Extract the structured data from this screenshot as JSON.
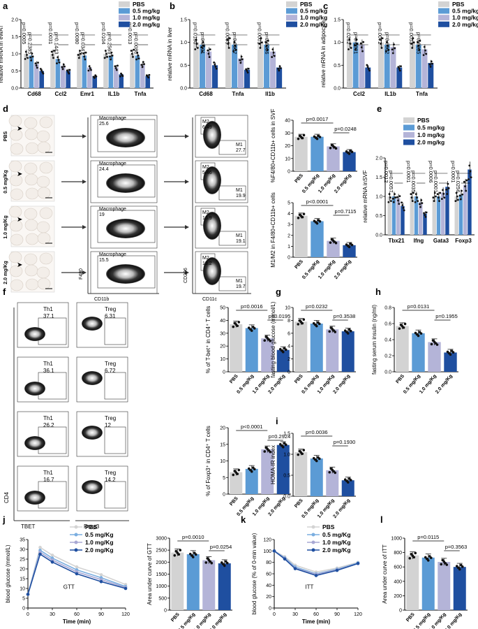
{
  "colors": {
    "pbs": "#d3d3d3",
    "d05": "#5b9bd5",
    "d10": "#b4b4d8",
    "d20": "#1f4fa0"
  },
  "panel_letters": {
    "a": "a",
    "b": "b",
    "c": "c",
    "d": "d",
    "e": "e",
    "f": "f",
    "g": "g",
    "h": "h",
    "i": "i",
    "j": "j",
    "k": "k",
    "l": "l"
  },
  "legend_kg": [
    "PBS",
    "0.5 mg/kg",
    "1.0 mg/kg",
    "2.0 mg/kg"
  ],
  "legend_Kg": [
    "PBS",
    "0.5 mg/Kg",
    "1.0 mg/Kg",
    "2.0 mg/Kg"
  ],
  "groups_Kg": [
    "PBS",
    "0.5 mg/Kg",
    "1.0 mg/Kg",
    "2.0 mg/Kg"
  ],
  "panel_d": {
    "rows": [
      "PBS",
      "0.5 mg/Kg",
      "1.0 mg/Kg",
      "2.0 mg/Kg"
    ],
    "mac_label": "Macrophage",
    "mac_values": [
      "25.6",
      "24.4",
      "19",
      "15.5"
    ],
    "m2_values": [
      "6.49",
      "5.46",
      "16.9",
      "19.2"
    ],
    "m1_values": [
      "27.7",
      "19.9",
      "19.1",
      "19.7"
    ],
    "m2_label": "M2",
    "m1_label": "M1",
    "x1": "CD11b",
    "y1": "F480",
    "x2": "CD11c",
    "y2": "CD206"
  },
  "panel_f": {
    "th1_label": "Th1",
    "treg_label": "Treg",
    "th1_values": [
      "37.1",
      "36.1",
      "26.2",
      "16.7"
    ],
    "treg_values": [
      "6.31",
      "6.72",
      "12",
      "14.2"
    ],
    "ylab": "CD4",
    "x1": "TBET",
    "x2": "Foxp3"
  },
  "chart_data": [
    {
      "id": "a",
      "type": "bar",
      "ylabel": "relative mRNA in eWAT",
      "categories": [
        "Cd68",
        "Ccl2",
        "Emr1",
        "IL1b",
        "Tnfa"
      ],
      "ylim": [
        0,
        2.0
      ],
      "yticks": [
        "0.0",
        "0.5",
        "1.0",
        "1.5",
        "2.0"
      ],
      "series": [
        {
          "name": "PBS",
          "values": [
            1.0,
            1.0,
            1.0,
            1.0,
            1.0
          ]
        },
        {
          "name": "0.5 mg/kg",
          "values": [
            0.95,
            0.85,
            0.95,
            0.95,
            0.95
          ]
        },
        {
          "name": "1.0 mg/kg",
          "values": [
            0.7,
            0.65,
            0.6,
            0.6,
            0.7
          ]
        },
        {
          "name": "2.0 mg/kg",
          "values": [
            0.5,
            0.5,
            0.35,
            0.4,
            0.35
          ]
        }
      ],
      "pvalues": [
        [
          "p=0.0005",
          "p=0.2385"
        ],
        [
          "p=0.0031",
          "p=0.1443"
        ],
        [
          "p=0.0080",
          "p=0.0341"
        ],
        [
          "p=0.0104",
          "p=0.2569"
        ],
        [
          "p=0.0013",
          "p=0.0080"
        ]
      ]
    },
    {
      "id": "b",
      "type": "bar",
      "ylabel": "relative mRNA in liver",
      "categories": [
        "Cd68",
        "Tnfa",
        "Il1b"
      ],
      "ylim": [
        0,
        1.5
      ],
      "yticks": [
        "0.0",
        "0.5",
        "1.0",
        "1.5"
      ],
      "series": [
        {
          "name": "PBS",
          "values": [
            1.0,
            1.0,
            1.0
          ]
        },
        {
          "name": "0.5 mg/kg",
          "values": [
            0.95,
            0.95,
            0.95
          ]
        },
        {
          "name": "1.0 mg/kg",
          "values": [
            0.8,
            0.65,
            0.8
          ]
        },
        {
          "name": "2.0 mg/kg",
          "values": [
            0.5,
            0.4,
            0.45
          ]
        }
      ],
      "pvalues": [
        [
          "p=0.0180",
          "p=0.0001"
        ],
        [
          "p=0.0005",
          "p=0.0007"
        ],
        [
          "p=0.0001",
          "p=0.0006"
        ]
      ]
    },
    {
      "id": "c",
      "type": "bar",
      "ylabel": "relative mRNA in adipocyte",
      "categories": [
        "Ccl2",
        "IL1b",
        "Tnfa"
      ],
      "ylim": [
        0,
        1.5
      ],
      "yticks": [
        "0.0",
        "0.5",
        "1.0",
        "1.5"
      ],
      "series": [
        {
          "name": "PBS",
          "values": [
            1.0,
            1.0,
            1.0
          ]
        },
        {
          "name": "0.5 mg/kg",
          "values": [
            1.0,
            0.95,
            0.95
          ]
        },
        {
          "name": "1.0 mg/kg",
          "values": [
            0.95,
            0.9,
            0.85
          ]
        },
        {
          "name": "2.0 mg/kg",
          "values": [
            0.45,
            0.45,
            0.55
          ]
        }
      ],
      "pvalues": [
        [
          "p=0.0262",
          "p=0.0001"
        ],
        [
          "p=0.0072",
          "p=0.0002"
        ],
        [
          "p=0.0053",
          "p=0.0005"
        ]
      ]
    },
    {
      "id": "d1",
      "type": "bar",
      "ylabel": "%F4/80+CD11b+ cells in SVF",
      "categories": [
        "PBS",
        "0.5 mg/Kg",
        "1.0 mg/Kg",
        "2.0 mg/Kg"
      ],
      "values": [
        27,
        27,
        19.5,
        15
      ],
      "ylim": [
        0,
        40
      ],
      "yticks": [
        "0",
        "10",
        "20",
        "30",
        "40"
      ],
      "pvalues": [
        "p=0.0017",
        "p=0.0248"
      ]
    },
    {
      "id": "d2",
      "type": "bar",
      "ylabel": "M1/M2 in F4/80+CD11b+ cells",
      "categories": [
        "PBS",
        "0.5 mg/Kg",
        "1.0 mg/Kg",
        "2.0 mg/Kg"
      ],
      "values": [
        3.8,
        3.3,
        1.5,
        1.1
      ],
      "ylim": [
        0,
        5
      ],
      "yticks": [
        "0",
        "1",
        "2",
        "3",
        "4",
        "5"
      ],
      "pvalues": [
        "p<0.0001",
        "p=0.7115"
      ]
    },
    {
      "id": "e",
      "type": "bar",
      "ylabel": "relative mRNA inSVF",
      "categories": [
        "Tbx21",
        "Ifng",
        "Gata3",
        "Foxp3"
      ],
      "ylim": [
        0,
        2.0
      ],
      "yticks": [
        "0.0",
        "0.5",
        "1.0",
        "1.5",
        "2.0"
      ],
      "series": [
        {
          "name": "PBS",
          "values": [
            1.0,
            1.0,
            1.0,
            1.0
          ]
        },
        {
          "name": "0.5 mg/kg",
          "values": [
            1.0,
            1.0,
            1.0,
            1.05
          ]
        },
        {
          "name": "1.0 mg/kg",
          "values": [
            0.95,
            0.85,
            1.1,
            1.3
          ]
        },
        {
          "name": "2.0 mg/kg",
          "values": [
            0.75,
            0.55,
            1.25,
            1.7
          ]
        }
      ],
      "pvalues": [
        [
          "p=0.0012",
          "p=0.0057"
        ],
        [
          "p=0.0001",
          "p=0.0035"
        ],
        [
          "p=0.0006",
          "p=0.0001"
        ],
        [
          "p=0.0001",
          "p=0.0256"
        ]
      ]
    },
    {
      "id": "f1",
      "type": "bar",
      "ylabel": "% of T-bet⁺ in CD4⁺ T cells",
      "categories": [
        "PBS",
        "0.5 mg/Kg",
        "1.0 mg/Kg",
        "2.0 mg/Kg"
      ],
      "values": [
        37,
        34,
        26,
        17
      ],
      "ylim": [
        0,
        50
      ],
      "yticks": [
        "0",
        "10",
        "20",
        "30",
        "40",
        "50"
      ],
      "pvalues": [
        "p=0.0016",
        "p=0.0195"
      ]
    },
    {
      "id": "f2",
      "type": "bar",
      "ylabel": "% of Foxp3⁺ in CD4⁺ T cells",
      "categories": [
        "PBS",
        "0.5 mg/Kg",
        "1.0 mg/Kg",
        "2.0 mg/Kg"
      ],
      "values": [
        6.6,
        7.6,
        13.5,
        14.8
      ],
      "ylim": [
        0,
        20
      ],
      "yticks": [
        "0",
        "5",
        "10",
        "15",
        "20"
      ],
      "pvalues": [
        "p<0.0001",
        "p=0.2924"
      ]
    },
    {
      "id": "g",
      "type": "bar",
      "ylabel": "fasting blood glucose (mmol/L)",
      "categories": [
        "PBS",
        "0.5 mg/Kg",
        "1.0 mg/Kg",
        "2.0 mg/Kg"
      ],
      "values": [
        7.8,
        7.5,
        6.6,
        6.3
      ],
      "ylim": [
        0,
        10
      ],
      "yticks": [
        "0",
        "2",
        "4",
        "6",
        "8",
        "10"
      ],
      "pvalues": [
        "p=0.0232",
        "p=0.3538"
      ]
    },
    {
      "id": "h",
      "type": "bar",
      "ylabel": "fasting serum insulin (ng/ml)",
      "categories": [
        "PBS",
        "0.5 mg/Kg",
        "1.0 mg/Kg",
        "2.0 mg/Kg"
      ],
      "values": [
        0.57,
        0.48,
        0.37,
        0.24
      ],
      "ylim": [
        0,
        0.8
      ],
      "yticks": [
        "0.0",
        "0.2",
        "0.4",
        "0.6",
        "0.8"
      ],
      "pvalues": [
        "p=0.0131",
        "p=0.1955"
      ]
    },
    {
      "id": "i",
      "type": "bar",
      "ylabel": "HOMA-IR index",
      "categories": [
        "PBS",
        "0.5 mg/Kg",
        "1.0 mg/Kg",
        "2.0 mg/Kg"
      ],
      "values": [
        1.05,
        0.9,
        0.62,
        0.38
      ],
      "ylim": [
        0,
        1.5
      ],
      "yticks": [
        "0.0",
        "0.5",
        "1.0",
        "1.5"
      ],
      "pvalues": [
        "p=0.0036",
        "p=0.1930"
      ]
    },
    {
      "id": "j1",
      "type": "line",
      "title": "GTT",
      "ylabel": "blood glucose (mmol/L)",
      "xlabel": "Time (min)",
      "x": [
        0,
        15,
        30,
        60,
        90,
        120
      ],
      "xticks": [
        "0",
        "30",
        "60",
        "90",
        "120"
      ],
      "ylim": [
        0,
        35
      ],
      "yticks": [
        "0",
        "5",
        "10",
        "15",
        "20",
        "25",
        "30",
        "35"
      ],
      "series": [
        {
          "name": "PBS",
          "values": [
            7,
            31,
            27,
            21,
            17,
            12
          ]
        },
        {
          "name": "0.5 mg/Kg",
          "values": [
            7,
            29.5,
            25.5,
            19.5,
            15.5,
            11
          ]
        },
        {
          "name": "1.0 mg/Kg",
          "values": [
            7,
            28.5,
            24.5,
            18.5,
            14.5,
            10.5
          ]
        },
        {
          "name": "2.0 mg/Kg",
          "values": [
            7,
            27.5,
            23.5,
            17.5,
            13.5,
            10
          ]
        }
      ]
    },
    {
      "id": "j2",
      "type": "bar",
      "ylabel": "Area under curve of GTT",
      "categories": [
        "PBS",
        "0.5 mg/Kg",
        "1.0 mg/Kg",
        "2.0 mg/Kg"
      ],
      "values": [
        2400,
        2330,
        2080,
        1950
      ],
      "ylim": [
        0,
        3000
      ],
      "yticks": [
        "0",
        "500",
        "1000",
        "1500",
        "2000",
        "2500",
        "3000"
      ],
      "pvalues": [
        "p=0.0010",
        "p=0.0254"
      ]
    },
    {
      "id": "k",
      "type": "line",
      "title": "ITT",
      "ylabel": "blood glucose (% of 0-min value)",
      "xlabel": "Time (min)",
      "x": [
        0,
        15,
        30,
        60,
        90,
        120
      ],
      "xticks": [
        "0",
        "30",
        "60",
        "90",
        "120"
      ],
      "ylim": [
        0,
        120
      ],
      "yticks": [
        "0",
        "20",
        "40",
        "60",
        "80",
        "100",
        "120"
      ],
      "series": [
        {
          "name": "PBS",
          "values": [
            100,
            90,
            75,
            63,
            70,
            80
          ]
        },
        {
          "name": "0.5 mg/Kg",
          "values": [
            100,
            88,
            72,
            60,
            68,
            79
          ]
        },
        {
          "name": "1.0 mg/Kg",
          "values": [
            100,
            87,
            70,
            59,
            67,
            78
          ]
        },
        {
          "name": "2.0 mg/Kg",
          "values": [
            100,
            86,
            69,
            57,
            66,
            78
          ]
        }
      ]
    },
    {
      "id": "l",
      "type": "bar",
      "ylabel": "Area under curve of ITT",
      "categories": [
        "PBS",
        "0.5 mg/Kg",
        "1.0 mg/Kg",
        "2.0 mg/Kg"
      ],
      "values": [
        760,
        730,
        670,
        600
      ],
      "ylim": [
        0,
        1000
      ],
      "yticks": [
        "0",
        "200",
        "400",
        "600",
        "800",
        "1000"
      ],
      "pvalues": [
        "p=0.0115",
        "p=0.3563"
      ]
    }
  ]
}
